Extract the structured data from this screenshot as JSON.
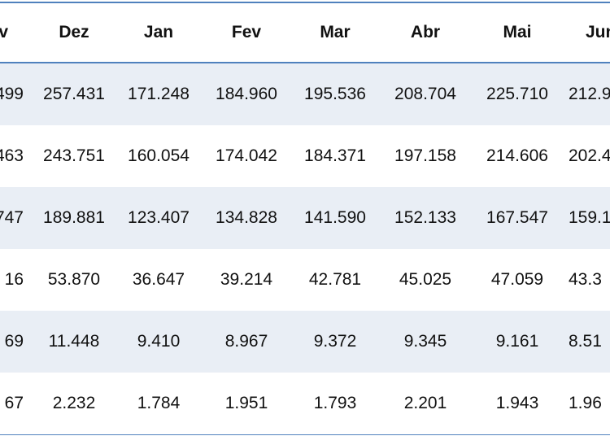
{
  "table": {
    "header": [
      "v",
      "Dez",
      "Jan",
      "Fev",
      "Mar",
      "Abr",
      "Mai",
      "Jun"
    ],
    "rows": [
      [
        "499",
        "257.431",
        "171.248",
        "184.960",
        "195.536",
        "208.704",
        "225.710",
        "212.9"
      ],
      [
        "463",
        "243.751",
        "160.054",
        "174.042",
        "184.371",
        "197.158",
        "214.606",
        "202.4"
      ],
      [
        "747",
        "189.881",
        "123.407",
        "134.828",
        "141.590",
        "152.133",
        "167.547",
        "159.1"
      ],
      [
        "16",
        "53.870",
        "36.647",
        "39.214",
        "42.781",
        "45.025",
        "47.059",
        "43.3"
      ],
      [
        "69",
        "11.448",
        "9.410",
        "8.967",
        "9.372",
        "9.345",
        "9.161",
        "8.51"
      ],
      [
        "67",
        "2.232",
        "1.784",
        "1.951",
        "1.793",
        "2.201",
        "1.943",
        "1.96"
      ]
    ]
  }
}
